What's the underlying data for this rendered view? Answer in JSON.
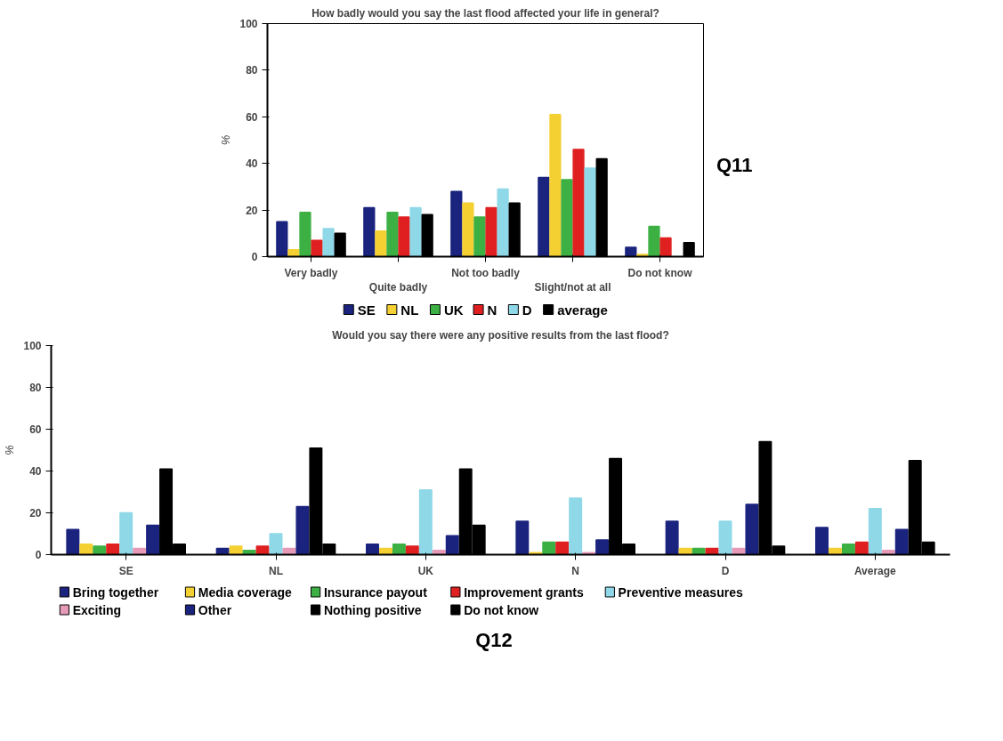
{
  "chart_data": [
    {
      "type": "bar",
      "title": "How badly would you say the last flood affected your life in general?",
      "ylabel": "%",
      "categories": [
        "Very badly",
        "Quite badly",
        "Not too badly",
        "Slight/not at all",
        "Do not know"
      ],
      "ylim": [
        0,
        100
      ],
      "yticks": [
        0,
        20,
        40,
        60,
        80,
        100
      ],
      "legend": "bottom",
      "grid": false,
      "annotations": [
        "Q11"
      ],
      "series": [
        {
          "name": "SE",
          "color": "#1a237e",
          "values": [
            15,
            21,
            28,
            34,
            4
          ]
        },
        {
          "name": "NL",
          "color": "#f5d033",
          "values": [
            3,
            11,
            23,
            61,
            1
          ]
        },
        {
          "name": "UK",
          "color": "#3cb043",
          "values": [
            19,
            19,
            17,
            33,
            13
          ]
        },
        {
          "name": "N",
          "color": "#e02020",
          "values": [
            7,
            17,
            21,
            46,
            8
          ]
        },
        {
          "name": "D",
          "color": "#8fd8e8",
          "values": [
            12,
            21,
            29,
            38,
            0
          ]
        },
        {
          "name": "average",
          "color": "#000000",
          "values": [
            10,
            18,
            23,
            42,
            6
          ]
        }
      ]
    },
    {
      "type": "bar",
      "title": "Would you say there were any positive results from the last flood?",
      "ylabel": "%",
      "categories": [
        "SE",
        "NL",
        "UK",
        "N",
        "D",
        "Average"
      ],
      "ylim": [
        0,
        100
      ],
      "yticks": [
        0,
        20,
        40,
        60,
        80,
        100
      ],
      "legend": "bottom",
      "grid": false,
      "annotations": [
        "Q12"
      ],
      "series": [
        {
          "name": "Bring together",
          "color": "#1a237e",
          "values": [
            12,
            3,
            5,
            16,
            16,
            13
          ]
        },
        {
          "name": "Media coverage",
          "color": "#f5d033",
          "values": [
            5,
            4,
            3,
            1,
            3,
            3
          ]
        },
        {
          "name": "Insurance payout",
          "color": "#3cb043",
          "values": [
            4,
            2,
            5,
            6,
            3,
            5
          ]
        },
        {
          "name": "Improvement grants",
          "color": "#e02020",
          "values": [
            5,
            4,
            4,
            6,
            3,
            6
          ]
        },
        {
          "name": "Preventive measures",
          "color": "#8fd8e8",
          "values": [
            20,
            10,
            31,
            27,
            16,
            22
          ]
        },
        {
          "name": "Exciting",
          "color": "#e79ab8",
          "values": [
            3,
            3,
            2,
            1,
            3,
            2
          ]
        },
        {
          "name": "Other",
          "color": "#1a237e",
          "values": [
            14,
            23,
            9,
            7,
            24,
            12
          ]
        },
        {
          "name": "Nothing positive",
          "color": "#000000",
          "values": [
            41,
            51,
            41,
            46,
            54,
            45
          ]
        },
        {
          "name": "Do not know",
          "color": "#000000",
          "values": [
            5,
            5,
            14,
            5,
            4,
            6
          ]
        }
      ]
    }
  ]
}
